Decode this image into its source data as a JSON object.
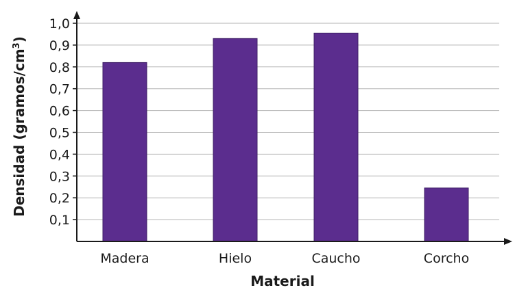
{
  "chart_data": {
    "type": "bar",
    "categories": [
      "Madera",
      "Hielo",
      "Caucho",
      "Corcho"
    ],
    "values": [
      0.82,
      0.93,
      0.955,
      0.245
    ],
    "title": "",
    "xlabel": "Material",
    "ylabel_main": "Densidad (gramos/cm",
    "ylabel_sup": "3",
    "ylabel_close": ")",
    "ylim": [
      0,
      1.0
    ],
    "yticks": [
      {
        "value": 0.1,
        "label": "0,1"
      },
      {
        "value": 0.2,
        "label": "0,2"
      },
      {
        "value": 0.3,
        "label": "0,3"
      },
      {
        "value": 0.4,
        "label": "0,4"
      },
      {
        "value": 0.5,
        "label": "0,5"
      },
      {
        "value": 0.6,
        "label": "0,6"
      },
      {
        "value": 0.7,
        "label": "0,7"
      },
      {
        "value": 0.8,
        "label": "0,8"
      },
      {
        "value": 0.9,
        "label": "0,9"
      },
      {
        "value": 1.0,
        "label": "1,0"
      }
    ],
    "grid": true,
    "bar_color": "#5b2d8e",
    "bar_edge_color": "#3f1f66",
    "grid_color": "#b3b3b3",
    "axis_color": "#1a1a1a"
  }
}
